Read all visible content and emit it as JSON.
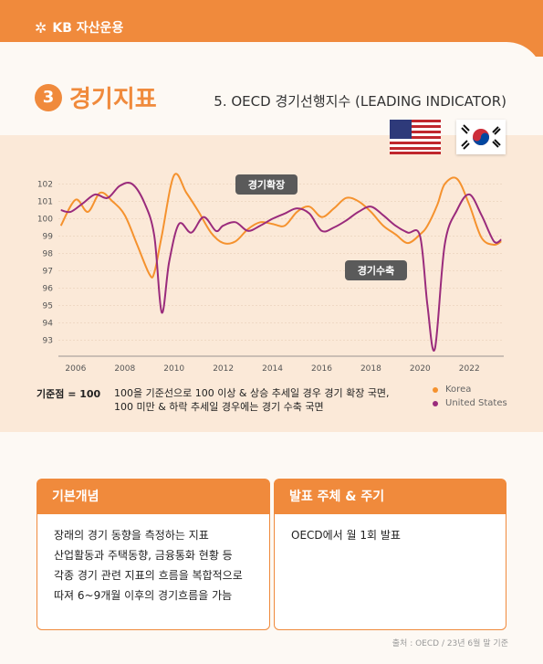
{
  "brand": "KB 자산운용",
  "section": {
    "number": "3",
    "title": "경기지표"
  },
  "subtitle": "5. OECD 경기선행지수 (LEADING INDICATOR)",
  "annotations": {
    "expansion": "경기확장",
    "contraction": "경기수축"
  },
  "baseline_note": {
    "key": "기준점 = 100",
    "line1": "100을 기준선으로 100 이상 & 상승 추세일 경우 경기 확장 국면,",
    "line2": "100 미만 & 하락 추세일 경우에는 경기 수축 국면"
  },
  "colors": {
    "accent": "#f08a3c",
    "korea": "#f5922e",
    "us": "#9a2b7c"
  },
  "chart_data": {
    "type": "line",
    "ylim": [
      92.5,
      102.5
    ],
    "yticks": [
      93,
      94,
      95,
      96,
      97,
      98,
      99,
      100,
      101,
      102
    ],
    "xlim": [
      2005.3,
      2023.4
    ],
    "xticks": [
      2006,
      2008,
      2010,
      2012,
      2014,
      2016,
      2018,
      2020,
      2022
    ],
    "legend": "bottom-right",
    "series": [
      {
        "name": "Korea",
        "color": "#f5922e",
        "x": [
          2005.4,
          2006.0,
          2006.5,
          2007.0,
          2007.5,
          2008.0,
          2008.5,
          2009.0,
          2009.2,
          2009.5,
          2010.0,
          2010.5,
          2011.0,
          2011.5,
          2012.0,
          2012.5,
          2013.0,
          2013.5,
          2014.0,
          2014.5,
          2015.0,
          2015.5,
          2016.0,
          2016.5,
          2017.0,
          2017.5,
          2018.0,
          2018.5,
          2019.0,
          2019.5,
          2020.0,
          2020.3,
          2020.7,
          2021.0,
          2021.5,
          2022.0,
          2022.5,
          2023.0,
          2023.3
        ],
        "y": [
          99.6,
          101.1,
          100.4,
          101.5,
          101.0,
          100.2,
          98.5,
          96.8,
          96.9,
          99.0,
          102.5,
          101.5,
          100.4,
          99.2,
          98.6,
          98.7,
          99.4,
          99.8,
          99.7,
          99.6,
          100.4,
          100.7,
          100.1,
          100.6,
          101.2,
          101.0,
          100.4,
          99.6,
          99.1,
          98.6,
          99.1,
          99.6,
          100.8,
          102.0,
          102.3,
          100.8,
          98.9,
          98.5,
          98.7
        ]
      },
      {
        "name": "United States",
        "color": "#9a2b7c",
        "x": [
          2005.4,
          2005.8,
          2006.3,
          2006.8,
          2007.3,
          2007.8,
          2008.3,
          2008.8,
          2009.2,
          2009.5,
          2009.8,
          2010.2,
          2010.7,
          2011.2,
          2011.7,
          2012.0,
          2012.5,
          2013.0,
          2013.5,
          2014.0,
          2014.5,
          2015.0,
          2015.5,
          2016.0,
          2016.5,
          2017.0,
          2017.5,
          2018.0,
          2018.5,
          2019.0,
          2019.5,
          2020.0,
          2020.3,
          2020.6,
          2021.0,
          2021.5,
          2022.0,
          2022.5,
          2023.0,
          2023.3
        ],
        "y": [
          100.5,
          100.4,
          100.9,
          101.4,
          101.2,
          101.9,
          102.0,
          100.9,
          99.0,
          94.6,
          97.5,
          99.7,
          99.2,
          100.1,
          99.3,
          99.6,
          99.8,
          99.3,
          99.6,
          100.0,
          100.3,
          100.6,
          100.3,
          99.3,
          99.5,
          99.9,
          100.4,
          100.7,
          100.2,
          99.6,
          99.2,
          99.0,
          95.0,
          92.5,
          98.5,
          100.5,
          101.4,
          100.2,
          98.7,
          98.8
        ]
      }
    ]
  },
  "boxes": [
    {
      "title": "기본개념",
      "lines": [
        "장래의 경기 동향을 측정하는 지표",
        "산업활동과 주택동향, 금융통화 현황 등",
        "각종 경기 관련 지표의 흐름을 복합적으로",
        "따져 6~9개월 이후의 경기흐름을 가늠"
      ]
    },
    {
      "title": "발표 주체 & 주기",
      "lines": [
        "OECD에서 월 1회 발표"
      ]
    }
  ],
  "source": "출처 : OECD / 23년 6월 말 기준"
}
